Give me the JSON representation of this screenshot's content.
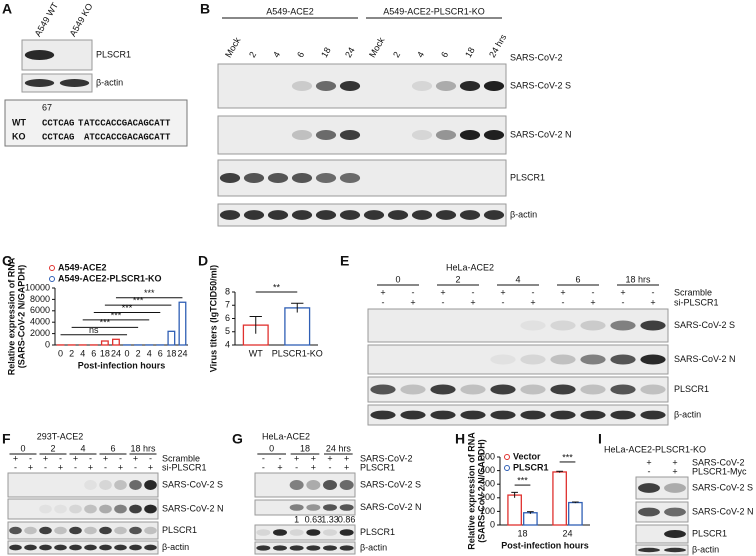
{
  "panels": {
    "A": {
      "letter": "A",
      "lanes": [
        "A549 WT",
        "A549 KO"
      ],
      "blots": [
        "PLSCR1",
        "β-actin"
      ],
      "sequence": {
        "position": "67",
        "rows": [
          {
            "name": "WT",
            "before": "CCTCAG",
            "mutant": "T",
            "after": "ATCCACCGACAGCATT"
          },
          {
            "name": "KO",
            "before": "CCTCAG",
            "after": "ATCCACCGACAGCATT"
          }
        ]
      }
    },
    "B": {
      "letter": "B",
      "groups": [
        "A549-ACE2",
        "A549-ACE2-PLSCR1-KO"
      ],
      "lanes": [
        "Mock",
        "2",
        "4",
        "6",
        "18",
        "24",
        "Mock",
        "2",
        "4",
        "6",
        "18",
        "24 hrs"
      ],
      "treatment": "SARS-CoV-2",
      "blots": [
        "SARS-CoV-2 S",
        "SARS-CoV-2 N",
        "PLSCR1",
        "β-actin"
      ]
    },
    "C": {
      "letter": "C"
    },
    "D": {
      "letter": "D"
    },
    "E": {
      "letter": "E",
      "cell": "HeLa-ACE2",
      "groups": [
        "0",
        "2",
        "4",
        "6",
        "18 hrs"
      ],
      "rows": [
        {
          "name": "Scramble",
          "signs": [
            "+",
            "-",
            "+",
            "-",
            "+",
            "-",
            "+",
            "-",
            "+",
            "-"
          ]
        },
        {
          "name": "si-PLSCR1",
          "signs": [
            "-",
            "+",
            "-",
            "+",
            "-",
            "+",
            "-",
            "+",
            "-",
            "+"
          ]
        }
      ],
      "blots": [
        "SARS-CoV-2 S",
        "SARS-CoV-2 N",
        "PLSCR1",
        "β-actin"
      ]
    },
    "F": {
      "letter": "F",
      "cell": "293T-ACE2",
      "groups": [
        "0",
        "2",
        "4",
        "6",
        "18 hrs"
      ],
      "rows": [
        {
          "name": "Scramble",
          "signs": [
            "+",
            "-",
            "+",
            "-",
            "+",
            "-",
            "+",
            "-",
            "+",
            "-"
          ]
        },
        {
          "name": "si-PLSCR1",
          "signs": [
            "-",
            "+",
            "-",
            "+",
            "-",
            "+",
            "-",
            "+",
            "-",
            "+"
          ]
        }
      ],
      "blots": [
        "SARS-CoV-2 S",
        "SARS-CoV-2 N",
        "PLSCR1",
        "β-actin"
      ]
    },
    "G": {
      "letter": "G",
      "cell": "HeLa-ACE2",
      "groups": [
        "0",
        "18",
        "24 hrs"
      ],
      "rows": [
        {
          "name": "SARS-CoV-2",
          "signs": [
            "-",
            "-",
            "+",
            "+",
            "+",
            "+"
          ]
        },
        {
          "name": "PLSCR1",
          "signs": [
            "-",
            "+",
            "-",
            "+",
            "-",
            "+"
          ]
        }
      ],
      "quantification": [
        "1",
        "0.63",
        "1.33",
        "0.86"
      ],
      "blots": [
        "SARS-CoV-2 S",
        "SARS-CoV-2 N",
        "PLSCR1",
        "β-actin"
      ]
    },
    "H": {
      "letter": "H"
    },
    "I": {
      "letter": "I",
      "cell": "HeLa-ACE2-PLSCR1-KO",
      "rows": [
        {
          "name": "SARS-CoV-2",
          "signs": [
            "+",
            "+"
          ]
        },
        {
          "name": "PLSCR1-Myc",
          "signs": [
            "-",
            "+"
          ]
        }
      ],
      "blots": [
        "SARS-CoV-2 S",
        "SARS-CoV-2 N",
        "PLSCR1",
        "β-actin"
      ]
    }
  },
  "chart_data": [
    {
      "type": "bar",
      "categories": [
        "0",
        "2",
        "4",
        "6",
        "18",
        "24",
        "0",
        "2",
        "4",
        "6",
        "18",
        "24"
      ],
      "series": [
        {
          "name": "A549-ACE2",
          "color": "#e0312e",
          "values": [
            15,
            15,
            15,
            15,
            700,
            1000,
            null,
            null,
            null,
            null,
            null,
            null
          ]
        },
        {
          "name": "A549-ACE2-PLSCR1-KO",
          "color": "#2f5fb5",
          "values": [
            null,
            null,
            null,
            null,
            null,
            null,
            15,
            15,
            15,
            15,
            2400,
            7500
          ]
        }
      ],
      "ylim": [
        0,
        10000
      ],
      "yticks": [
        0,
        2000,
        4000,
        6000,
        8000,
        10000
      ],
      "ylabel": [
        "Relative expression of RNA",
        "(SARS-CoV-2 N/GAPDH)"
      ],
      "xlabel": "Post-infection hours",
      "annotations": [
        "ns",
        "***",
        "***",
        "***",
        "***",
        "***"
      ],
      "legend": "upper left"
    },
    {
      "type": "bar",
      "categories": [
        "WT",
        "PLSCR1-KO"
      ],
      "values": [
        5.5,
        6.8
      ],
      "errors": [
        0.65,
        0.35
      ],
      "colors": [
        "#e0312e",
        "#2f5fb5"
      ],
      "ylim": [
        4,
        8
      ],
      "yticks": [
        4,
        5,
        6,
        7,
        8
      ],
      "ylabel": "Virus titers (lgTCID50/ml)",
      "annotations": [
        "**"
      ]
    },
    {
      "type": "bar",
      "categories": [
        "18",
        "24"
      ],
      "series": [
        {
          "name": "Vector",
          "color": "#e0312e",
          "values": [
            220,
            390
          ],
          "errors": [
            20,
            5
          ]
        },
        {
          "name": "PLSCR1",
          "color": "#2f5fb5",
          "values": [
            90,
            165
          ],
          "errors": [
            8,
            4
          ]
        }
      ],
      "ylim": [
        0,
        500
      ],
      "yticks": [
        0,
        100,
        200,
        300,
        400,
        500
      ],
      "ylabel": [
        "Relative expression of RNA",
        "(SARS-CoV-2 N/GAPDH)"
      ],
      "xlabel": "Post-infection hours",
      "annotations": [
        "***",
        "***"
      ],
      "legend": "upper left"
    }
  ]
}
